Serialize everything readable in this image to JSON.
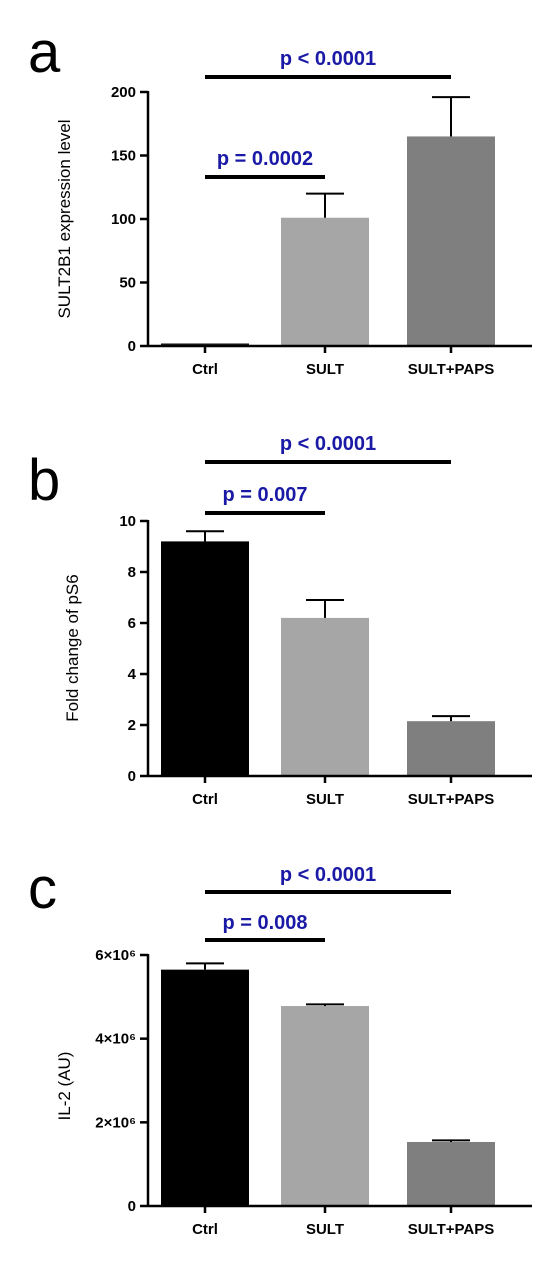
{
  "chart_data": [
    {
      "panel": "a",
      "type": "bar",
      "categories": [
        "Ctrl",
        "SULT",
        "SULT+PAPS"
      ],
      "values": [
        2,
        101,
        165
      ],
      "errors": [
        0,
        19,
        31
      ],
      "bar_colors": [
        "#1a1a1a",
        "#a6a6a6",
        "#7f7f7f"
      ],
      "ylabel": "SULT2B1 expression level",
      "ylim": [
        0,
        200
      ],
      "yticks": [
        0,
        50,
        100,
        150,
        200
      ],
      "ytick_labels": [
        "0",
        "50",
        "100",
        "150",
        "200"
      ],
      "annotations": [
        {
          "text": "p = 0.0002",
          "from": 0,
          "to": 1,
          "level": 1
        },
        {
          "text": "p < 0.0001",
          "from": 0,
          "to": 2,
          "level": 2
        }
      ]
    },
    {
      "panel": "b",
      "type": "bar",
      "categories": [
        "Ctrl",
        "SULT",
        "SULT+PAPS"
      ],
      "values": [
        9.2,
        6.2,
        2.15
      ],
      "errors": [
        0.4,
        0.7,
        0.2
      ],
      "bar_colors": [
        "#000000",
        "#a6a6a6",
        "#7f7f7f"
      ],
      "ylabel": "Fold change of pS6",
      "ylim": [
        0,
        10
      ],
      "yticks": [
        0,
        2,
        4,
        6,
        8,
        10
      ],
      "ytick_labels": [
        "0",
        "2",
        "4",
        "6",
        "8",
        "10"
      ],
      "annotations": [
        {
          "text": "p = 0.007",
          "from": 0,
          "to": 1,
          "level": 1
        },
        {
          "text": "p < 0.0001",
          "from": 0,
          "to": 2,
          "level": 2
        }
      ]
    },
    {
      "panel": "c",
      "type": "bar",
      "categories": [
        "Ctrl",
        "SULT",
        "SULT+PAPS"
      ],
      "values": [
        5650000,
        4780000,
        1530000
      ],
      "errors": [
        150000,
        40000,
        40000
      ],
      "bar_colors": [
        "#000000",
        "#a6a6a6",
        "#7f7f7f"
      ],
      "ylabel": "IL-2 (AU)",
      "ylim": [
        0,
        6000000
      ],
      "yticks": [
        0,
        2000000,
        4000000,
        6000000
      ],
      "ytick_labels": [
        "0",
        "2×10⁶",
        "4×10⁶",
        "6×10⁶"
      ],
      "annotations": [
        {
          "text": "p = 0.008",
          "from": 0,
          "to": 1,
          "level": 1
        },
        {
          "text": "p < 0.0001",
          "from": 0,
          "to": 2,
          "level": 2
        }
      ]
    }
  ],
  "colors": {
    "annotation_text": "#1a1aa6",
    "annotation_line": "#000000"
  }
}
